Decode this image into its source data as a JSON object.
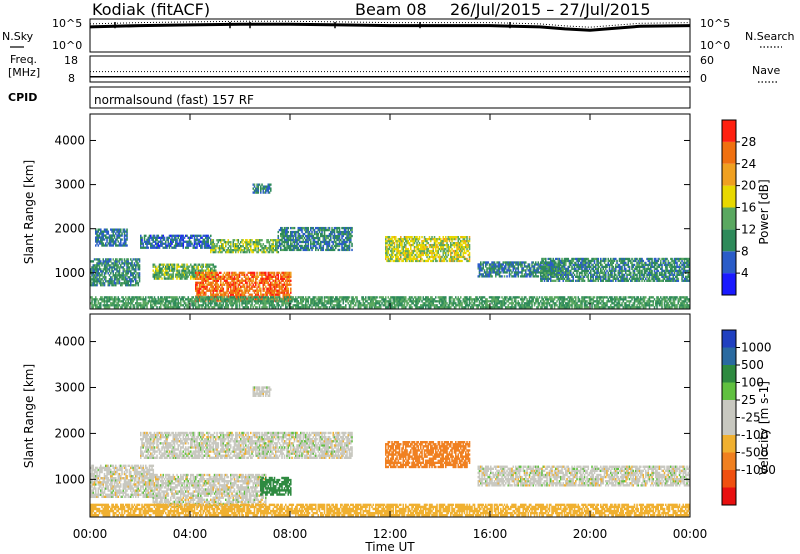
{
  "header": {
    "station": "Kodiak (fitACF)",
    "beam": "Beam 08",
    "date_range": "26/Jul/2015 – 27/Jul/2015"
  },
  "params_panel": {
    "nsky_label": "N.Sky",
    "nsearch_label": "N.Search",
    "freq_label_top": "Freq.",
    "freq_label_unit": "[MHz]",
    "nave_label": "Nave",
    "cpid_label": "CPID",
    "cpid_value": "normalsound (fast) 157 RF",
    "nsky_ticks": [
      "10^5",
      "10^0"
    ],
    "nsearch_ticks": [
      "10^5",
      "10^0"
    ],
    "freq_ticks": [
      "18",
      "8"
    ],
    "nave_ticks": [
      "60",
      "0"
    ]
  },
  "colors": {
    "power_scale": [
      "#1a1aff",
      "#2a5cc8",
      "#2e8a5a",
      "#5aa860",
      "#e8d800",
      "#f0a020",
      "#f07010",
      "#ff2010"
    ],
    "velocity_scale": [
      "#e81010",
      "#f05010",
      "#f08020",
      "#f0b030",
      "#c8c8c0",
      "#c8c8c0",
      "#60c040",
      "#2e8a40",
      "#2a6aa0",
      "#2040c0"
    ]
  },
  "chart_data": [
    {
      "type": "heatmap",
      "panel": "power",
      "xlabel": "",
      "ylabel": "Slant Range [km]",
      "x_ticks": [
        "00:00",
        "04:00",
        "08:00",
        "12:00",
        "16:00",
        "20:00",
        "00:00"
      ],
      "x_range_hours": [
        0,
        24
      ],
      "y_ticks": [
        "1000",
        "2000",
        "3000",
        "4000"
      ],
      "ylim": [
        180,
        4600
      ],
      "colorbar": {
        "label": "Power [dB]",
        "tick_labels": [
          "4",
          "8",
          "12",
          "16",
          "20",
          "24",
          "28"
        ],
        "range": [
          0,
          32
        ]
      },
      "regions": [
        {
          "t0": 0.0,
          "t1": 2.0,
          "r0": 700,
          "r1": 1300,
          "value": 10
        },
        {
          "t0": 0.2,
          "t1": 1.5,
          "r0": 1600,
          "r1": 2000,
          "value": 8
        },
        {
          "t0": 2.0,
          "t1": 4.8,
          "r0": 1550,
          "r1": 1850,
          "value": 7
        },
        {
          "t0": 4.8,
          "t1": 7.5,
          "r0": 1450,
          "r1": 1750,
          "value": 14
        },
        {
          "t0": 7.5,
          "t1": 10.5,
          "r0": 1500,
          "r1": 2000,
          "value": 9
        },
        {
          "t0": 2.5,
          "t1": 5.0,
          "r0": 850,
          "r1": 1200,
          "value": 14
        },
        {
          "t0": 4.2,
          "t1": 8.0,
          "r0": 350,
          "r1": 1000,
          "value": 26
        },
        {
          "t0": 6.5,
          "t1": 7.2,
          "r0": 2800,
          "r1": 3000,
          "value": 9
        },
        {
          "t0": 11.8,
          "t1": 15.2,
          "r0": 1250,
          "r1": 1800,
          "value": 17
        },
        {
          "t0": 15.5,
          "t1": 19.0,
          "r0": 900,
          "r1": 1250,
          "value": 9
        },
        {
          "t0": 18.0,
          "t1": 24.0,
          "r0": 800,
          "r1": 1300,
          "value": 10
        },
        {
          "t0": 0.0,
          "t1": 24.0,
          "r0": 200,
          "r1": 450,
          "value": 12
        }
      ]
    },
    {
      "type": "heatmap",
      "panel": "velocity",
      "xlabel": "Time UT",
      "ylabel": "Slant Range [km]",
      "x_ticks": [
        "00:00",
        "04:00",
        "08:00",
        "12:00",
        "16:00",
        "20:00",
        "00:00"
      ],
      "x_range_hours": [
        0,
        24
      ],
      "y_ticks": [
        "1000",
        "2000",
        "3000",
        "4000"
      ],
      "ylim": [
        180,
        4600
      ],
      "colorbar": {
        "label": "Velocity [m s-1]",
        "tick_labels": [
          "1000",
          "500",
          "100",
          "25",
          "-25",
          "-100",
          "-500",
          "-1000"
        ],
        "range": [
          -1200,
          1200
        ]
      },
      "regions": [
        {
          "t0": 0.0,
          "t1": 2.5,
          "r0": 600,
          "r1": 1300,
          "value": 0
        },
        {
          "t0": 2.0,
          "t1": 10.5,
          "r0": 1450,
          "r1": 2000,
          "value": 0
        },
        {
          "t0": 2.5,
          "t1": 7.0,
          "r0": 400,
          "r1": 1100,
          "value": 0
        },
        {
          "t0": 6.8,
          "t1": 8.0,
          "r0": 650,
          "r1": 1050,
          "value": 150
        },
        {
          "t0": 6.5,
          "t1": 7.2,
          "r0": 2800,
          "r1": 3000,
          "value": 0
        },
        {
          "t0": 11.8,
          "t1": 15.2,
          "r0": 1250,
          "r1": 1800,
          "value": -300
        },
        {
          "t0": 15.5,
          "t1": 24.0,
          "r0": 850,
          "r1": 1300,
          "value": 0
        },
        {
          "t0": 0.0,
          "t1": 24.0,
          "r0": 200,
          "r1": 450,
          "value": -60
        }
      ]
    },
    {
      "type": "line",
      "panel": "nsky_nsearch",
      "x_range_hours": [
        0,
        24
      ],
      "ylim_log10": [
        0,
        5
      ],
      "series": [
        {
          "x": [
            0,
            2,
            4,
            6,
            8,
            10,
            12,
            14,
            16,
            18,
            19,
            20,
            21,
            22,
            24
          ],
          "y": [
            3.8,
            4.0,
            4.1,
            4.2,
            4.2,
            4.1,
            4.0,
            4.0,
            4.0,
            3.8,
            3.5,
            3.3,
            3.6,
            3.9,
            4.0
          ]
        }
      ]
    },
    {
      "type": "line",
      "panel": "freq_nave",
      "x_range_hours": [
        0,
        24
      ],
      "series": [
        {
          "x": [
            0,
            24
          ],
          "y": [
            10,
            10
          ]
        },
        {
          "x": [
            0,
            24
          ],
          "y": [
            12,
            12
          ]
        }
      ]
    }
  ]
}
